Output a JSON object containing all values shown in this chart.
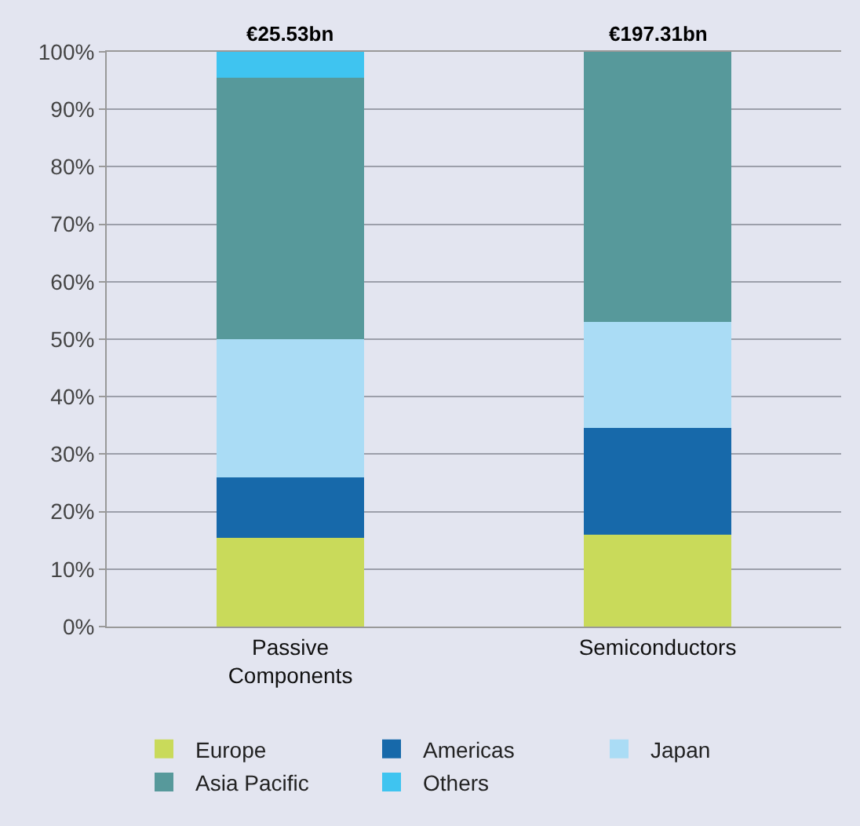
{
  "chart_data": {
    "type": "bar",
    "stacked": true,
    "categories": [
      "Passive Components",
      "Semiconductors"
    ],
    "series": [
      {
        "name": "Europe",
        "color": "#c9da5a",
        "values": [
          15.5,
          16
        ]
      },
      {
        "name": "Americas",
        "color": "#1769aa",
        "values": [
          10.5,
          18.5
        ]
      },
      {
        "name": "Japan",
        "color": "#aadcf5",
        "values": [
          24,
          18.5
        ]
      },
      {
        "name": "Asia Pacific",
        "color": "#57999b",
        "values": [
          45.5,
          47
        ]
      },
      {
        "name": "Others",
        "color": "#3fc4f0",
        "values": [
          4.5,
          0
        ]
      }
    ],
    "ylim": [
      0,
      100
    ],
    "yticks": [
      {
        "value": 0,
        "label": "0%"
      },
      {
        "value": 10,
        "label": "10%"
      },
      {
        "value": 20,
        "label": "20%"
      },
      {
        "value": 30,
        "label": "30%"
      },
      {
        "value": 40,
        "label": "40%"
      },
      {
        "value": 50,
        "label": "50%"
      },
      {
        "value": 60,
        "label": "60%"
      },
      {
        "value": 70,
        "label": "70%"
      },
      {
        "value": 80,
        "label": "80%"
      },
      {
        "value": 90,
        "label": "90%"
      },
      {
        "value": 100,
        "label": "100%"
      }
    ],
    "grid": "y",
    "legend": "bottom",
    "annotations": [
      {
        "text": "€25.53bn",
        "x": "Passive Components",
        "y": 100
      },
      {
        "text": "€197.31bn",
        "x": "Semiconductors",
        "y": 100
      }
    ]
  }
}
